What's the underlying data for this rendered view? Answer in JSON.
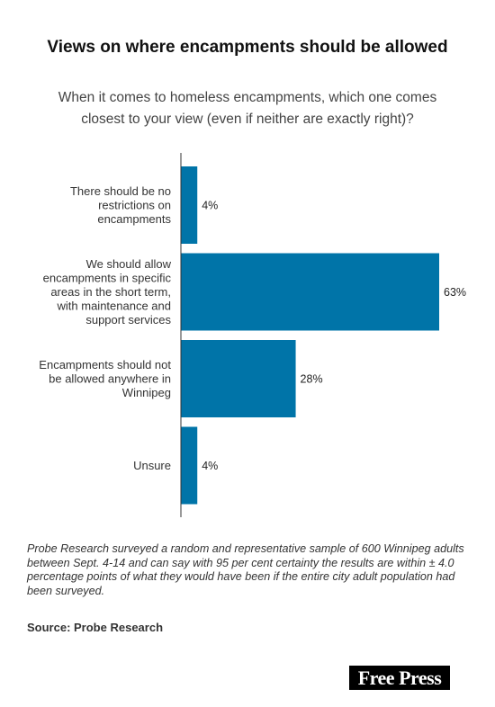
{
  "title": "Views on where encampments should be allowed",
  "subtitle": "When it comes to homeless encampments, which one comes closest to your view (even if neither are exactly right)?",
  "note": "Probe Research surveyed a random and representative sample of 600 Winnipeg adults between Sept. 4-14 and can say with 95 per cent certainty the results are within ± 4.0 percentage points of what they would have been if the entire city adult population had been surveyed.",
  "source": "Source: Probe Research",
  "logo": "Free Press",
  "colors": {
    "bar": "#0074a8",
    "axis": "#333333"
  },
  "chart_data": {
    "type": "bar",
    "orientation": "horizontal",
    "categories": [
      [
        "There should be no",
        "restrictions on",
        "encampments"
      ],
      [
        "We should allow",
        "encampments in specific",
        "areas in the short term,",
        "with maintenance and",
        "support services"
      ],
      [
        "Encampments should not",
        "be allowed anywhere in",
        "Winnipeg"
      ],
      [
        "Unsure"
      ]
    ],
    "values": [
      4,
      63,
      28,
      4
    ],
    "value_labels": [
      "4%",
      "63%",
      "28%",
      "4%"
    ],
    "unit": "%",
    "xlim": [
      0,
      63
    ],
    "grid": false
  }
}
